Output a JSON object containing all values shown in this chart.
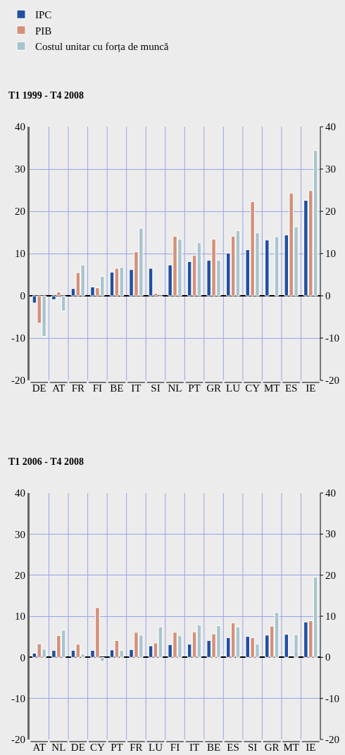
{
  "chart_data": [
    {
      "type": "bar",
      "title": "T1 1999 - T4 2008",
      "categories": [
        "DE",
        "AT",
        "FR",
        "FI",
        "BE",
        "IT",
        "SI",
        "NL",
        "PT",
        "GR",
        "LU",
        "CY",
        "MT",
        "ES",
        "IE"
      ],
      "series": [
        {
          "name": "IPC",
          "color": "#1f4fa0",
          "values": [
            -1.7,
            -0.9,
            1.7,
            2.1,
            5.6,
            6.2,
            6.5,
            7.3,
            8.1,
            8.4,
            10.1,
            10.9,
            13.2,
            14.4,
            22.6
          ]
        },
        {
          "name": "PIB",
          "color": "#d4907a",
          "values": [
            -6.5,
            0.9,
            5.5,
            1.9,
            6.5,
            10.4,
            0.6,
            14.1,
            9.6,
            13.4,
            14.1,
            22.3,
            null,
            24.3,
            24.9
          ]
        },
        {
          "name": "Costul unitar cu forța de muncă",
          "color": "#a9c4cc",
          "values": [
            -9.6,
            -3.6,
            7.3,
            4.6,
            6.7,
            16.0,
            -0.4,
            13.4,
            12.6,
            8.4,
            15.4,
            14.9,
            14.0,
            16.3,
            34.4
          ]
        }
      ],
      "ylim": [
        -20,
        40
      ],
      "yticks": [
        -20,
        -10,
        0,
        10,
        20,
        30,
        40
      ],
      "y2lim": [
        -20,
        40
      ],
      "y2ticks": [
        -20,
        -10,
        0,
        10,
        20,
        30,
        40
      ],
      "grid": true,
      "legend": "top left"
    },
    {
      "type": "bar",
      "title": "T1 2006 - T4 2008",
      "categories": [
        "AT",
        "NL",
        "DE",
        "CY",
        "PT",
        "FR",
        "LU",
        "FI",
        "IT",
        "BE",
        "ES",
        "SI",
        "GR",
        "MT",
        "IE"
      ],
      "series": [
        {
          "color": "#1f4fa0",
          "values": [
            1.0,
            1.7,
            1.7,
            1.7,
            1.8,
            1.9,
            2.8,
            3.1,
            3.2,
            4.1,
            4.8,
            5.1,
            5.4,
            5.6,
            8.6
          ]
        },
        {
          "color": "#d4907a",
          "values": [
            3.3,
            5.3,
            3.2,
            12.1,
            4.1,
            6.1,
            3.5,
            6.1,
            6.2,
            5.7,
            8.4,
            4.8,
            7.6,
            null,
            8.9
          ]
        },
        {
          "color": "#a9c4cc",
          "values": [
            2.0,
            6.6,
            0.8,
            -1.0,
            1.7,
            5.4,
            7.4,
            5.3,
            7.9,
            7.7,
            7.4,
            3.2,
            10.9,
            5.5,
            19.5
          ]
        }
      ],
      "ylim": [
        -20,
        40
      ],
      "yticks": [
        -20,
        -10,
        0,
        10,
        20,
        30,
        40
      ],
      "y2lim": [
        -20,
        40
      ],
      "y2ticks": [
        -20,
        -10,
        0,
        10,
        20,
        30,
        40
      ],
      "grid": true,
      "legend": false
    }
  ]
}
